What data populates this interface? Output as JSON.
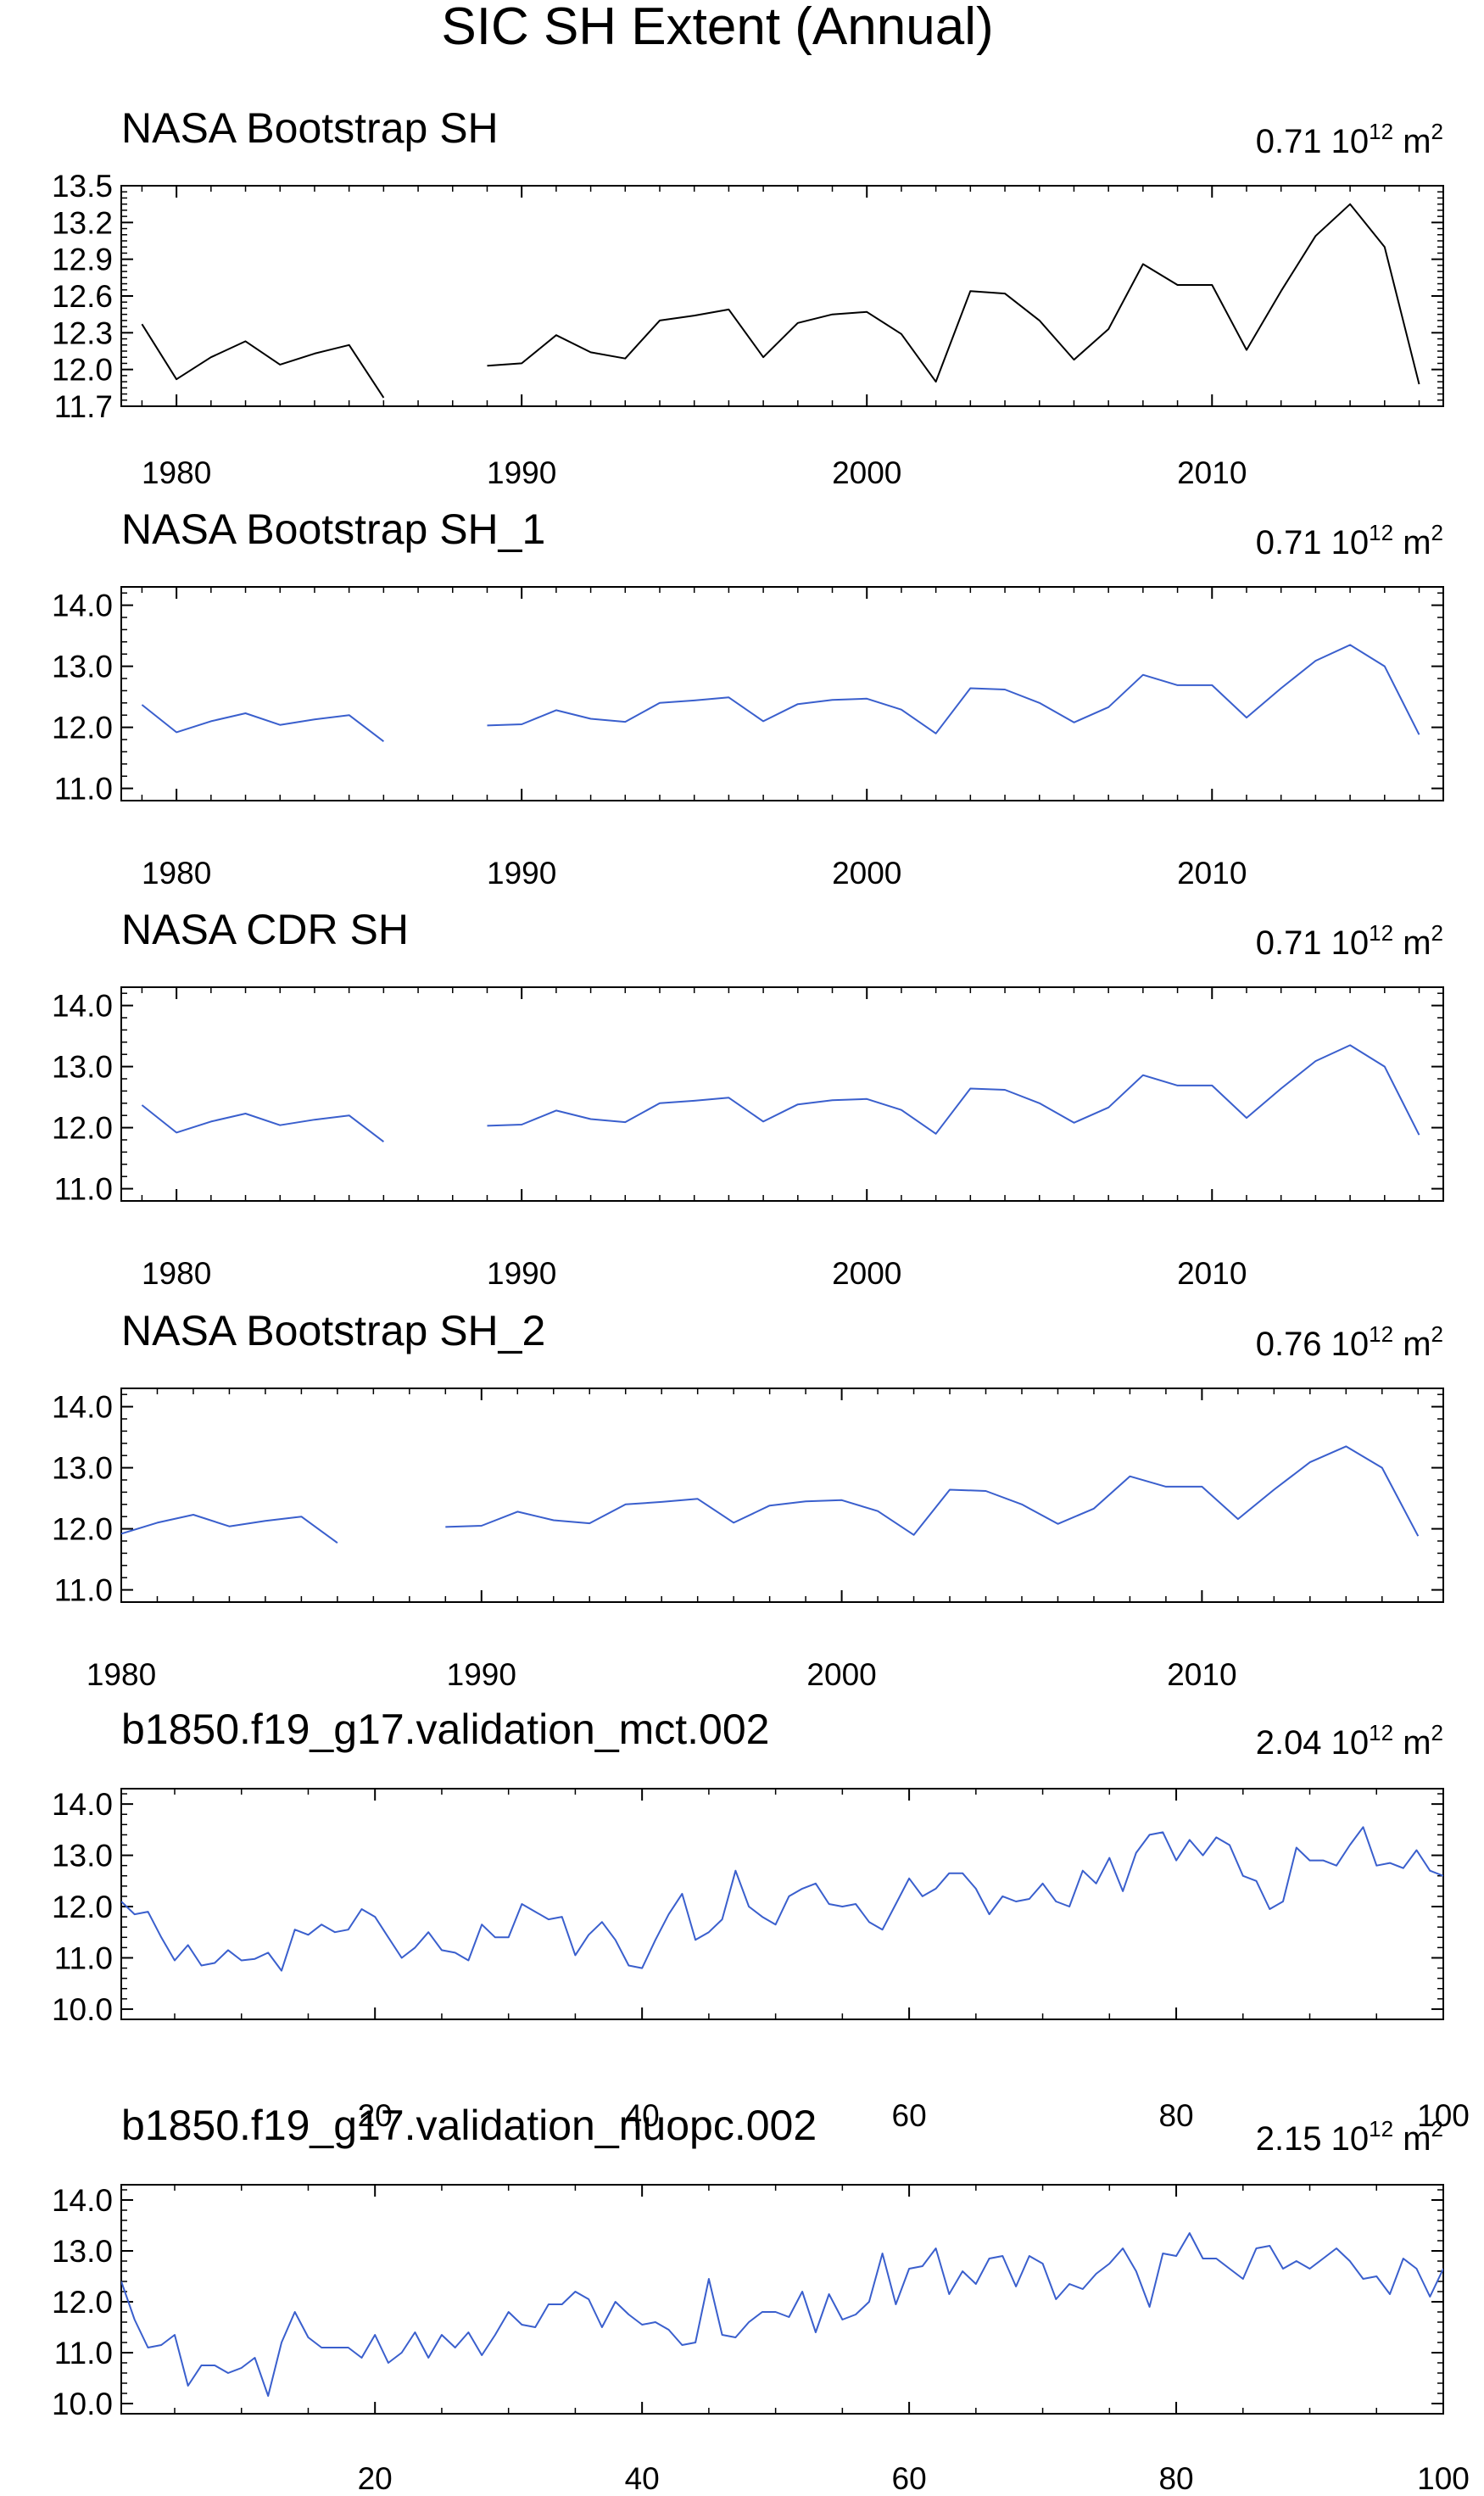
{
  "figure_title": "SIC SH Extent (Annual)",
  "units_label": {
    "base": "10",
    "exp": "12",
    "unit": "m",
    "unit_exp": "2"
  },
  "chart_data": [
    {
      "type": "line",
      "title": "NASA Bootstrap SH",
      "annotation": "0.71",
      "line_color": "#000000",
      "xlim": [
        1978.4,
        2016.7
      ],
      "ylim": [
        11.7,
        13.5
      ],
      "yticks": [
        "11.7",
        "12.0",
        "12.3",
        "12.6",
        "12.9",
        "13.2",
        "13.5"
      ],
      "yminor": 0.05,
      "xticks": [
        "1980",
        "1990",
        "2000",
        "2010"
      ],
      "xminor": 1,
      "x": [
        1979,
        1980,
        1981,
        1982,
        1983,
        1984,
        1985,
        1986,
        1987,
        1988,
        1989,
        1990,
        1991,
        1992,
        1993,
        1994,
        1995,
        1996,
        1997,
        1998,
        1999,
        2000,
        2001,
        2002,
        2003,
        2004,
        2005,
        2006,
        2007,
        2008,
        2009,
        2010,
        2011,
        2012,
        2013,
        2014,
        2015,
        2016
      ],
      "values": [
        12.37,
        11.92,
        12.1,
        12.23,
        12.04,
        12.13,
        12.2,
        11.77,
        null,
        null,
        12.03,
        12.05,
        12.28,
        12.14,
        12.09,
        12.4,
        12.44,
        12.49,
        12.1,
        12.38,
        12.45,
        12.47,
        12.29,
        11.9,
        12.64,
        12.62,
        12.4,
        12.08,
        12.33,
        12.86,
        12.69,
        12.69,
        12.16,
        12.64,
        13.09,
        13.35,
        13.0,
        11.88
      ]
    },
    {
      "type": "line",
      "title": "NASA Bootstrap SH_1",
      "annotation": "0.71",
      "line_color": "#3a5fcd",
      "xlim": [
        1978.4,
        2016.7
      ],
      "ylim": [
        10.8,
        14.3
      ],
      "yticks": [
        "11.0",
        "12.0",
        "13.0",
        "14.0"
      ],
      "yminor": 0.2,
      "xticks": [
        "1980",
        "1990",
        "2000",
        "2010"
      ],
      "xminor": 1,
      "x": [
        1979,
        1980,
        1981,
        1982,
        1983,
        1984,
        1985,
        1986,
        1987,
        1988,
        1989,
        1990,
        1991,
        1992,
        1993,
        1994,
        1995,
        1996,
        1997,
        1998,
        1999,
        2000,
        2001,
        2002,
        2003,
        2004,
        2005,
        2006,
        2007,
        2008,
        2009,
        2010,
        2011,
        2012,
        2013,
        2014,
        2015,
        2016
      ],
      "values": [
        12.37,
        11.92,
        12.1,
        12.23,
        12.04,
        12.13,
        12.2,
        11.77,
        null,
        null,
        12.03,
        12.05,
        12.28,
        12.14,
        12.09,
        12.4,
        12.44,
        12.49,
        12.1,
        12.38,
        12.45,
        12.47,
        12.29,
        11.9,
        12.64,
        12.62,
        12.4,
        12.08,
        12.33,
        12.86,
        12.69,
        12.69,
        12.16,
        12.64,
        13.09,
        13.35,
        13.0,
        11.88
      ]
    },
    {
      "type": "line",
      "title": "NASA CDR SH",
      "annotation": "0.71",
      "line_color": "#3a5fcd",
      "xlim": [
        1978.4,
        2016.7
      ],
      "ylim": [
        10.8,
        14.3
      ],
      "yticks": [
        "11.0",
        "12.0",
        "13.0",
        "14.0"
      ],
      "yminor": 0.2,
      "xticks": [
        "1980",
        "1990",
        "2000",
        "2010"
      ],
      "xminor": 1,
      "x": [
        1979,
        1980,
        1981,
        1982,
        1983,
        1984,
        1985,
        1986,
        1987,
        1988,
        1989,
        1990,
        1991,
        1992,
        1993,
        1994,
        1995,
        1996,
        1997,
        1998,
        1999,
        2000,
        2001,
        2002,
        2003,
        2004,
        2005,
        2006,
        2007,
        2008,
        2009,
        2010,
        2011,
        2012,
        2013,
        2014,
        2015,
        2016
      ],
      "values": [
        12.37,
        11.92,
        12.1,
        12.23,
        12.04,
        12.13,
        12.2,
        11.77,
        null,
        null,
        12.03,
        12.05,
        12.28,
        12.14,
        12.09,
        12.4,
        12.44,
        12.49,
        12.1,
        12.38,
        12.45,
        12.47,
        12.29,
        11.9,
        12.64,
        12.62,
        12.4,
        12.08,
        12.33,
        12.86,
        12.69,
        12.69,
        12.16,
        12.64,
        13.09,
        13.35,
        13.0,
        11.88
      ]
    },
    {
      "type": "line",
      "title": "NASA Bootstrap SH_2",
      "annotation": "0.76",
      "line_color": "#3a5fcd",
      "xlim": [
        1980.0,
        2016.7
      ],
      "ylim": [
        10.8,
        14.3
      ],
      "yticks": [
        "11.0",
        "12.0",
        "13.0",
        "14.0"
      ],
      "yminor": 0.2,
      "xticks": [
        "1980",
        "1990",
        "2000",
        "2010"
      ],
      "xminor": 1,
      "x": [
        1979,
        1980,
        1981,
        1982,
        1983,
        1984,
        1985,
        1986,
        1987,
        1988,
        1989,
        1990,
        1991,
        1992,
        1993,
        1994,
        1995,
        1996,
        1997,
        1998,
        1999,
        2000,
        2001,
        2002,
        2003,
        2004,
        2005,
        2006,
        2007,
        2008,
        2009,
        2010,
        2011,
        2012,
        2013,
        2014,
        2015,
        2016
      ],
      "values": [
        12.37,
        11.92,
        12.1,
        12.23,
        12.04,
        12.13,
        12.2,
        11.77,
        null,
        null,
        12.03,
        12.05,
        12.28,
        12.14,
        12.09,
        12.4,
        12.44,
        12.49,
        12.1,
        12.38,
        12.45,
        12.47,
        12.29,
        11.9,
        12.64,
        12.62,
        12.4,
        12.08,
        12.33,
        12.86,
        12.69,
        12.69,
        12.16,
        12.64,
        13.09,
        13.35,
        13.0,
        11.88
      ]
    },
    {
      "type": "line",
      "title": "b1850.f19_g17.validation_mct.002",
      "annotation": "2.04",
      "line_color": "#3a5fcd",
      "xlim": [
        1,
        100
      ],
      "ylim": [
        9.8,
        14.3
      ],
      "yticks": [
        "10.0",
        "11.0",
        "12.0",
        "13.0",
        "14.0"
      ],
      "yminor": 0.2,
      "xticks": [
        "20",
        "40",
        "60",
        "80",
        "100"
      ],
      "xminor": 5,
      "x_start": 1,
      "values": [
        12.1,
        11.85,
        11.9,
        11.4,
        10.95,
        11.25,
        10.85,
        10.9,
        11.15,
        10.95,
        10.98,
        11.1,
        10.75,
        11.55,
        11.45,
        11.65,
        11.5,
        11.55,
        11.95,
        11.8,
        11.4,
        11.0,
        11.2,
        11.5,
        11.15,
        11.1,
        10.95,
        11.65,
        11.4,
        11.4,
        12.05,
        11.9,
        11.75,
        11.8,
        11.05,
        11.45,
        11.7,
        11.35,
        10.85,
        10.8,
        11.35,
        11.85,
        12.25,
        11.35,
        11.5,
        11.75,
        12.7,
        12.0,
        11.8,
        11.65,
        12.2,
        12.35,
        12.45,
        12.05,
        12.0,
        12.05,
        11.7,
        11.55,
        12.05,
        12.55,
        12.2,
        12.35,
        12.65,
        12.65,
        12.35,
        11.85,
        12.2,
        12.1,
        12.15,
        12.45,
        12.1,
        12.0,
        12.7,
        12.45,
        12.95,
        12.3,
        13.05,
        13.4,
        13.45,
        12.9,
        13.3,
        13.0,
        13.35,
        13.2,
        12.6,
        12.5,
        11.95,
        12.1,
        13.15,
        12.9,
        12.9,
        12.8,
        13.2,
        13.55,
        12.8,
        12.85,
        12.75,
        13.1,
        12.7,
        12.6
      ]
    },
    {
      "type": "line",
      "title": "b1850.f19_g17.validation_nuopc.002",
      "annotation": "2.15",
      "line_color": "#3a5fcd",
      "xlim": [
        1,
        100
      ],
      "ylim": [
        9.8,
        14.3
      ],
      "yticks": [
        "10.0",
        "11.0",
        "12.0",
        "13.0",
        "14.0"
      ],
      "yminor": 0.2,
      "xticks": [
        "20",
        "40",
        "60",
        "80",
        "100"
      ],
      "xminor": 5,
      "x_start": 1,
      "values": [
        12.4,
        11.65,
        11.1,
        11.15,
        11.35,
        10.35,
        10.75,
        10.75,
        10.6,
        10.7,
        10.9,
        10.15,
        11.2,
        11.8,
        11.3,
        11.1,
        11.1,
        11.1,
        10.9,
        11.35,
        10.8,
        11.0,
        11.4,
        10.9,
        11.35,
        11.1,
        11.4,
        10.95,
        11.35,
        11.8,
        11.55,
        11.5,
        11.95,
        11.95,
        12.2,
        12.05,
        11.5,
        12.0,
        11.75,
        11.55,
        11.6,
        11.45,
        11.15,
        11.2,
        12.45,
        11.35,
        11.3,
        11.6,
        11.8,
        11.8,
        11.7,
        12.2,
        11.4,
        12.15,
        11.65,
        11.75,
        12.0,
        12.95,
        11.95,
        12.65,
        12.7,
        13.05,
        12.15,
        12.6,
        12.35,
        12.85,
        12.9,
        12.3,
        12.9,
        12.75,
        12.05,
        12.35,
        12.25,
        12.55,
        12.75,
        13.05,
        12.6,
        11.9,
        12.95,
        12.9,
        13.35,
        12.85,
        12.85,
        12.65,
        12.45,
        13.05,
        13.1,
        12.65,
        12.8,
        12.65,
        12.85,
        13.05,
        12.8,
        12.45,
        12.5,
        12.15,
        12.85,
        12.65,
        12.1,
        12.65
      ]
    }
  ]
}
